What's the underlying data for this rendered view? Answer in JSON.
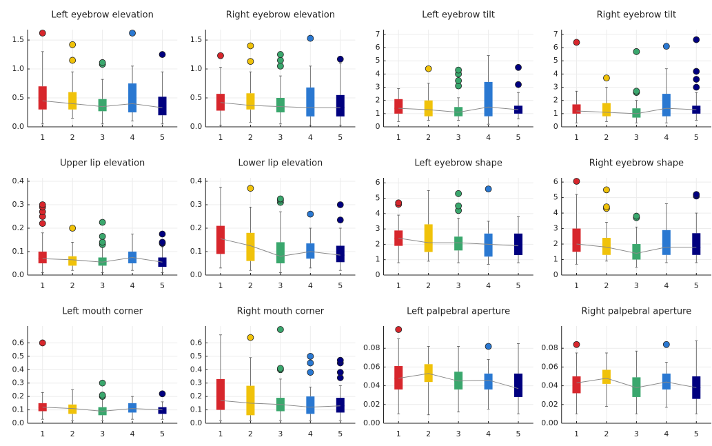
{
  "chart_data": [
    {
      "type": "box",
      "title": "Left eyebrow elevation",
      "categories": [
        "1",
        "2",
        "3",
        "4",
        "5"
      ],
      "colors": [
        "#d7262c",
        "#f0c20a",
        "#3aa76d",
        "#2a78d1",
        "#00007f"
      ],
      "median_line_color": "#8a8a8a",
      "grid": true,
      "ylim": [
        0,
        1.62
      ],
      "yticks": [
        {
          "value": 0,
          "label": "0.0"
        },
        0.5,
        {
          "value": 1,
          "label": "1.0"
        },
        1.5
      ],
      "boxes": [
        {
          "whislo": 0.05,
          "q1": 0.3,
          "med": 0.45,
          "q3": 0.7,
          "whishi": 1.3,
          "fliers": [
            1.62
          ]
        },
        {
          "whislo": 0.15,
          "q1": 0.3,
          "med": 0.4,
          "q3": 0.6,
          "whishi": 0.95,
          "fliers": [
            1.15,
            1.42
          ]
        },
        {
          "whislo": 0.05,
          "q1": 0.27,
          "med": 0.35,
          "q3": 0.48,
          "whishi": 0.82,
          "fliers": [
            1.08,
            1.11
          ]
        },
        {
          "whislo": 0.1,
          "q1": 0.25,
          "med": 0.4,
          "q3": 0.75,
          "whishi": 1.05,
          "fliers": [
            1.62
          ]
        },
        {
          "whislo": 0.05,
          "q1": 0.2,
          "med": 0.33,
          "q3": 0.52,
          "whishi": 0.95,
          "fliers": [
            1.25
          ]
        }
      ]
    },
    {
      "type": "box",
      "title": "Right eyebrow elevation",
      "categories": [
        "1",
        "2",
        "3",
        "4",
        "5"
      ],
      "colors": [
        "#d7262c",
        "#f0c20a",
        "#3aa76d",
        "#2a78d1",
        "#00007f"
      ],
      "median_line_color": "#8a8a8a",
      "grid": true,
      "ylim": [
        0,
        1.62
      ],
      "yticks": [
        {
          "value": 0,
          "label": "0.0"
        },
        0.5,
        {
          "value": 1,
          "label": "1.0"
        },
        1.5
      ],
      "boxes": [
        {
          "whislo": 0.03,
          "q1": 0.28,
          "med": 0.42,
          "q3": 0.57,
          "whishi": 1.03,
          "fliers": [
            1.23
          ]
        },
        {
          "whislo": 0.08,
          "q1": 0.3,
          "med": 0.37,
          "q3": 0.58,
          "whishi": 0.95,
          "fliers": [
            1.13,
            1.4
          ]
        },
        {
          "whislo": 0.05,
          "q1": 0.25,
          "med": 0.35,
          "q3": 0.5,
          "whishi": 0.88,
          "fliers": [
            1.05,
            1.15,
            1.25
          ]
        },
        {
          "whislo": 0.03,
          "q1": 0.18,
          "med": 0.33,
          "q3": 0.68,
          "whishi": 1.05,
          "fliers": [
            1.53
          ]
        },
        {
          "whislo": 0.03,
          "q1": 0.18,
          "med": 0.33,
          "q3": 0.55,
          "whishi": 1.1,
          "fliers": [
            1.17
          ]
        }
      ]
    },
    {
      "type": "box",
      "title": "Left eyebrow tilt",
      "categories": [
        "1",
        "2",
        "3",
        "4",
        "5"
      ],
      "colors": [
        "#d7262c",
        "#f0c20a",
        "#3aa76d",
        "#2a78d1",
        "#00007f"
      ],
      "median_line_color": "#8a8a8a",
      "grid": true,
      "ylim": [
        0,
        7.1
      ],
      "yticks": [
        0,
        1,
        2,
        3,
        4,
        5,
        6,
        7
      ],
      "boxes": [
        {
          "whislo": 0.4,
          "q1": 1.0,
          "med": 1.4,
          "q3": 2.1,
          "whishi": 2.9,
          "fliers": []
        },
        {
          "whislo": 0.5,
          "q1": 0.8,
          "med": 1.3,
          "q3": 2.0,
          "whishi": 3.3,
          "fliers": [
            4.4
          ]
        },
        {
          "whislo": 0.5,
          "q1": 0.8,
          "med": 1.1,
          "q3": 1.5,
          "whishi": 2.2,
          "fliers": [
            3.1,
            3.5,
            4.0,
            4.3
          ]
        },
        {
          "whislo": 0.2,
          "q1": 0.8,
          "med": 1.5,
          "q3": 3.4,
          "whishi": 5.4,
          "fliers": []
        },
        {
          "whislo": 0.6,
          "q1": 1.0,
          "med": 1.3,
          "q3": 1.6,
          "whishi": 2.6,
          "fliers": [
            3.2,
            4.5
          ]
        }
      ]
    },
    {
      "type": "box",
      "title": "Right eyebrow tilt",
      "categories": [
        "1",
        "2",
        "3",
        "4",
        "5"
      ],
      "colors": [
        "#d7262c",
        "#f0c20a",
        "#3aa76d",
        "#2a78d1",
        "#00007f"
      ],
      "median_line_color": "#8a8a8a",
      "grid": true,
      "ylim": [
        0,
        7.1
      ],
      "yticks": [
        0,
        1,
        2,
        3,
        4,
        5,
        6,
        7
      ],
      "boxes": [
        {
          "whislo": 0.3,
          "q1": 1.0,
          "med": 1.2,
          "q3": 1.7,
          "whishi": 2.7,
          "fliers": [
            6.4
          ]
        },
        {
          "whislo": 0.4,
          "q1": 0.8,
          "med": 1.1,
          "q3": 1.8,
          "whishi": 3.0,
          "fliers": [
            3.7
          ]
        },
        {
          "whislo": 0.3,
          "q1": 0.7,
          "med": 1.0,
          "q3": 1.4,
          "whishi": 2.0,
          "fliers": [
            2.6,
            2.7,
            5.7
          ]
        },
        {
          "whislo": 0.3,
          "q1": 0.8,
          "med": 1.4,
          "q3": 2.5,
          "whishi": 4.4,
          "fliers": [
            6.1
          ]
        },
        {
          "whislo": 0.5,
          "q1": 1.0,
          "med": 1.3,
          "q3": 1.6,
          "whishi": 2.6,
          "fliers": [
            3.0,
            3.6,
            4.2,
            6.6
          ]
        }
      ]
    },
    {
      "type": "box",
      "title": "Upper lip elevation",
      "categories": [
        "1",
        "2",
        "3",
        "4",
        "5"
      ],
      "colors": [
        "#d7262c",
        "#f0c20a",
        "#3aa76d",
        "#2a78d1",
        "#00007f"
      ],
      "median_line_color": "#8a8a8a",
      "grid": true,
      "ylim": [
        0,
        0.4
      ],
      "yticks": [
        {
          "value": 0,
          "label": "0.0"
        },
        0.1,
        0.2,
        0.3,
        0.4
      ],
      "boxes": [
        {
          "whislo": 0.01,
          "q1": 0.05,
          "med": 0.07,
          "q3": 0.1,
          "whishi": 0.18,
          "fliers": [
            0.22,
            0.25,
            0.27,
            0.29,
            0.3
          ]
        },
        {
          "whislo": 0.02,
          "q1": 0.04,
          "med": 0.065,
          "q3": 0.08,
          "whishi": 0.14,
          "fliers": [
            0.2
          ]
        },
        {
          "whislo": 0.01,
          "q1": 0.04,
          "med": 0.055,
          "q3": 0.075,
          "whishi": 0.12,
          "fliers": [
            0.13,
            0.14,
            0.165,
            0.225
          ]
        },
        {
          "whislo": 0.02,
          "q1": 0.05,
          "med": 0.075,
          "q3": 0.1,
          "whishi": 0.175,
          "fliers": []
        },
        {
          "whislo": 0.01,
          "q1": 0.035,
          "med": 0.055,
          "q3": 0.075,
          "whishi": 0.12,
          "fliers": [
            0.135,
            0.14,
            0.175
          ]
        }
      ]
    },
    {
      "type": "box",
      "title": "Lower lip elevation",
      "categories": [
        "1",
        "2",
        "3",
        "4",
        "5"
      ],
      "colors": [
        "#d7262c",
        "#f0c20a",
        "#3aa76d",
        "#2a78d1",
        "#00007f"
      ],
      "median_line_color": "#8a8a8a",
      "grid": true,
      "ylim": [
        0,
        0.4
      ],
      "yticks": [
        {
          "value": 0,
          "label": "0.0"
        },
        0.1,
        0.2,
        0.3,
        0.4
      ],
      "boxes": [
        {
          "whislo": 0.03,
          "q1": 0.09,
          "med": 0.155,
          "q3": 0.21,
          "whishi": 0.375,
          "fliers": []
        },
        {
          "whislo": 0.02,
          "q1": 0.06,
          "med": 0.125,
          "q3": 0.18,
          "whishi": 0.29,
          "fliers": [
            0.37
          ]
        },
        {
          "whislo": 0.01,
          "q1": 0.05,
          "med": 0.08,
          "q3": 0.14,
          "whishi": 0.27,
          "fliers": [
            0.31,
            0.32,
            0.325
          ]
        },
        {
          "whislo": 0.03,
          "q1": 0.07,
          "med": 0.1,
          "q3": 0.135,
          "whishi": 0.2,
          "fliers": [
            0.26
          ]
        },
        {
          "whislo": 0.02,
          "q1": 0.055,
          "med": 0.085,
          "q3": 0.125,
          "whishi": 0.2,
          "fliers": [
            0.235,
            0.3
          ]
        }
      ]
    },
    {
      "type": "box",
      "title": "Left eyebrow shape",
      "categories": [
        "1",
        "2",
        "3",
        "4",
        "5"
      ],
      "colors": [
        "#d7262c",
        "#f0c20a",
        "#3aa76d",
        "#2a78d1",
        "#00007f"
      ],
      "median_line_color": "#8a8a8a",
      "grid": true,
      "ylim": [
        0,
        6.1
      ],
      "yticks": [
        0,
        1,
        2,
        3,
        4,
        5,
        6
      ],
      "boxes": [
        {
          "whislo": 0.8,
          "q1": 1.9,
          "med": 2.4,
          "q3": 2.9,
          "whishi": 3.9,
          "fliers": [
            4.6,
            4.7
          ]
        },
        {
          "whislo": 0.9,
          "q1": 1.5,
          "med": 2.1,
          "q3": 3.3,
          "whishi": 5.5,
          "fliers": []
        },
        {
          "whislo": 0.8,
          "q1": 1.6,
          "med": 2.1,
          "q3": 2.5,
          "whishi": 3.7,
          "fliers": [
            4.2,
            4.5,
            5.3
          ]
        },
        {
          "whislo": 0.7,
          "q1": 1.2,
          "med": 2.0,
          "q3": 2.7,
          "whishi": 3.5,
          "fliers": [
            5.6
          ]
        },
        {
          "whislo": 0.8,
          "q1": 1.3,
          "med": 1.9,
          "q3": 2.7,
          "whishi": 3.8,
          "fliers": []
        }
      ]
    },
    {
      "type": "box",
      "title": "Right eyebrow shape",
      "categories": [
        "1",
        "2",
        "3",
        "4",
        "5"
      ],
      "colors": [
        "#d7262c",
        "#f0c20a",
        "#3aa76d",
        "#2a78d1",
        "#00007f"
      ],
      "median_line_color": "#8a8a8a",
      "grid": true,
      "ylim": [
        0,
        6.05
      ],
      "yticks": [
        0,
        1,
        2,
        3,
        4,
        5,
        6
      ],
      "boxes": [
        {
          "whislo": 0.7,
          "q1": 1.5,
          "med": 2.0,
          "q3": 3.0,
          "whishi": 5.2,
          "fliers": [
            6.05
          ]
        },
        {
          "whislo": 0.9,
          "q1": 1.3,
          "med": 1.8,
          "q3": 2.4,
          "whishi": 3.4,
          "fliers": [
            4.3,
            4.4,
            5.5
          ]
        },
        {
          "whislo": 0.5,
          "q1": 1.0,
          "med": 1.4,
          "q3": 2.0,
          "whishi": 3.1,
          "fliers": [
            3.7,
            3.8
          ]
        },
        {
          "whislo": 0.8,
          "q1": 1.3,
          "med": 1.8,
          "q3": 2.9,
          "whishi": 4.6,
          "fliers": []
        },
        {
          "whislo": 0.8,
          "q1": 1.3,
          "med": 1.8,
          "q3": 2.7,
          "whishi": 4.0,
          "fliers": [
            5.1,
            5.2
          ]
        }
      ]
    },
    {
      "type": "box",
      "title": "Left mouth corner",
      "categories": [
        "1",
        "2",
        "3",
        "4",
        "5"
      ],
      "colors": [
        "#d7262c",
        "#f0c20a",
        "#3aa76d",
        "#2a78d1",
        "#00007f"
      ],
      "median_line_color": "#8a8a8a",
      "grid": true,
      "ylim": [
        0,
        0.7
      ],
      "yticks": [
        {
          "value": 0,
          "label": "0.0"
        },
        0.1,
        0.2,
        0.3,
        0.4,
        0.5,
        0.6
      ],
      "boxes": [
        {
          "whislo": 0.03,
          "q1": 0.09,
          "med": 0.12,
          "q3": 0.15,
          "whishi": 0.23,
          "fliers": [
            0.6
          ]
        },
        {
          "whislo": 0.02,
          "q1": 0.07,
          "med": 0.11,
          "q3": 0.14,
          "whishi": 0.25,
          "fliers": []
        },
        {
          "whislo": 0.02,
          "q1": 0.06,
          "med": 0.09,
          "q3": 0.12,
          "whishi": 0.18,
          "fliers": [
            0.2,
            0.21,
            0.3
          ]
        },
        {
          "whislo": 0.03,
          "q1": 0.08,
          "med": 0.11,
          "q3": 0.15,
          "whishi": 0.2,
          "fliers": []
        },
        {
          "whislo": 0.03,
          "q1": 0.07,
          "med": 0.1,
          "q3": 0.12,
          "whishi": 0.16,
          "fliers": [
            0.22
          ]
        }
      ]
    },
    {
      "type": "box",
      "title": "Right mouth corner",
      "categories": [
        "1",
        "2",
        "3",
        "4",
        "5"
      ],
      "colors": [
        "#d7262c",
        "#f0c20a",
        "#3aa76d",
        "#2a78d1",
        "#00007f"
      ],
      "median_line_color": "#8a8a8a",
      "grid": true,
      "ylim": [
        0,
        0.7
      ],
      "yticks": [
        {
          "value": 0,
          "label": "0.0"
        },
        0.1,
        0.2,
        0.3,
        0.4,
        0.5,
        0.6
      ],
      "boxes": [
        {
          "whislo": 0.02,
          "q1": 0.1,
          "med": 0.17,
          "q3": 0.33,
          "whishi": 0.66,
          "fliers": []
        },
        {
          "whislo": 0.02,
          "q1": 0.06,
          "med": 0.15,
          "q3": 0.28,
          "whishi": 0.49,
          "fliers": [
            0.64
          ]
        },
        {
          "whislo": 0.02,
          "q1": 0.09,
          "med": 0.14,
          "q3": 0.19,
          "whishi": 0.33,
          "fliers": [
            0.4,
            0.41,
            0.7
          ]
        },
        {
          "whislo": 0.02,
          "q1": 0.07,
          "med": 0.12,
          "q3": 0.2,
          "whishi": 0.27,
          "fliers": [
            0.38,
            0.45,
            0.5
          ]
        },
        {
          "whislo": 0.02,
          "q1": 0.08,
          "med": 0.13,
          "q3": 0.19,
          "whishi": 0.28,
          "fliers": [
            0.34,
            0.38,
            0.45,
            0.47
          ]
        }
      ]
    },
    {
      "type": "box",
      "title": "Left palpebral aperture",
      "categories": [
        "1",
        "2",
        "3",
        "4",
        "5"
      ],
      "colors": [
        "#d7262c",
        "#f0c20a",
        "#3aa76d",
        "#2a78d1",
        "#00007f"
      ],
      "median_line_color": "#8a8a8a",
      "grid": true,
      "ylim": [
        0,
        0.1
      ],
      "yticks": [
        {
          "value": 0,
          "label": "0.00"
        },
        0.02,
        0.04,
        0.06,
        0.08
      ],
      "boxes": [
        {
          "whislo": 0.01,
          "q1": 0.036,
          "med": 0.048,
          "q3": 0.061,
          "whishi": 0.09,
          "fliers": [
            0.1
          ]
        },
        {
          "whislo": 0.009,
          "q1": 0.044,
          "med": 0.053,
          "q3": 0.063,
          "whishi": 0.082,
          "fliers": []
        },
        {
          "whislo": 0.012,
          "q1": 0.036,
          "med": 0.045,
          "q3": 0.055,
          "whishi": 0.082,
          "fliers": []
        },
        {
          "whislo": 0.015,
          "q1": 0.036,
          "med": 0.046,
          "q3": 0.053,
          "whishi": 0.068,
          "fliers": [
            0.082
          ]
        },
        {
          "whislo": 0.01,
          "q1": 0.028,
          "med": 0.037,
          "q3": 0.053,
          "whishi": 0.085,
          "fliers": []
        }
      ]
    },
    {
      "type": "box",
      "title": "Right palpebral aperture",
      "categories": [
        "1",
        "2",
        "3",
        "4",
        "5"
      ],
      "colors": [
        "#d7262c",
        "#f0c20a",
        "#3aa76d",
        "#2a78d1",
        "#00007f"
      ],
      "median_line_color": "#8a8a8a",
      "grid": true,
      "ylim": [
        0,
        0.1
      ],
      "yticks": [
        {
          "value": 0,
          "label": "0.00"
        },
        0.02,
        0.04,
        0.06,
        0.08
      ],
      "boxes": [
        {
          "whislo": 0.01,
          "q1": 0.032,
          "med": 0.043,
          "q3": 0.05,
          "whishi": 0.075,
          "fliers": [
            0.084
          ]
        },
        {
          "whislo": 0.018,
          "q1": 0.042,
          "med": 0.048,
          "q3": 0.057,
          "whishi": 0.075,
          "fliers": []
        },
        {
          "whislo": 0.01,
          "q1": 0.028,
          "med": 0.038,
          "q3": 0.049,
          "whishi": 0.077,
          "fliers": []
        },
        {
          "whislo": 0.017,
          "q1": 0.036,
          "med": 0.044,
          "q3": 0.053,
          "whishi": 0.065,
          "fliers": [
            0.084
          ]
        },
        {
          "whislo": 0.01,
          "q1": 0.026,
          "med": 0.038,
          "q3": 0.05,
          "whishi": 0.088,
          "fliers": []
        }
      ]
    }
  ]
}
